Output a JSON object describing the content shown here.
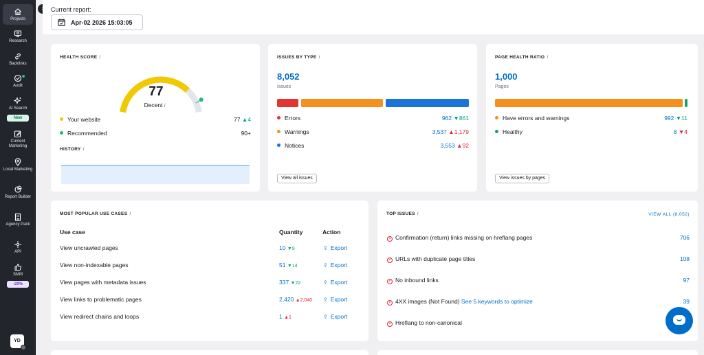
{
  "sidebar": {
    "items": [
      {
        "label": "Projects",
        "icon": "home-icon"
      },
      {
        "label": "Research",
        "icon": "monitor-icon"
      },
      {
        "label": "Backlinks",
        "icon": "link-icon"
      },
      {
        "label": "Audit",
        "icon": "check-circle-icon"
      },
      {
        "label": "AI Search",
        "icon": "sparkle-icon"
      },
      {
        "label": "Content Marketing",
        "icon": "edit-icon"
      },
      {
        "label": "Local Marketing",
        "icon": "map-pin-icon"
      },
      {
        "label": "Report Builder",
        "icon": "pie-icon"
      },
      {
        "label": "Agency Pack",
        "icon": "building-icon"
      },
      {
        "label": "API",
        "icon": "api-icon"
      },
      {
        "label": "SMM",
        "icon": "thumbs-up-icon"
      }
    ],
    "new_badge": "New",
    "discount_badge": "-20%",
    "avatar": "YD"
  },
  "header": {
    "current_report_label": "Current report:",
    "date": "Apr-02 2026 15:03:05"
  },
  "health": {
    "title": "Health score",
    "score": "77",
    "score_value": 77,
    "score_word": "Decent",
    "your_website_label": "Your website",
    "your_website_value": "77",
    "your_website_delta": "4",
    "recommended_label": "Recommended",
    "recommended_value": "90+",
    "history_title": "History",
    "colors": {
      "gauge": "#f2c900",
      "track": "#e4e5ea",
      "marker": "#1fb97a"
    }
  },
  "issues_by_type": {
    "title": "Issues by type",
    "total": "8,052",
    "total_label": "Issues",
    "rows": [
      {
        "label": "Errors",
        "value": "962",
        "delta": "861",
        "trend": "down",
        "color": "#e3342f"
      },
      {
        "label": "Warnings",
        "value": "3,537",
        "delta": "1,179",
        "trend": "up",
        "color": "#f5901f"
      },
      {
        "label": "Notices",
        "value": "3,553",
        "delta": "92",
        "trend": "up",
        "color": "#1b74d8"
      }
    ],
    "view_all_button": "View all issues"
  },
  "page_health": {
    "title": "Page health ratio",
    "total": "1,000",
    "total_label": "Pages",
    "rows": [
      {
        "label": "Have errors and warnings",
        "value": "992",
        "delta": "11",
        "trend": "down",
        "color": "#f5901f"
      },
      {
        "label": "Healthy",
        "value": "8",
        "delta": "4",
        "trend": "down",
        "color": "#16a06c"
      }
    ],
    "view_button": "View issues by pages"
  },
  "use_cases": {
    "title": "Most popular use cases",
    "headers": {
      "use_case": "Use case",
      "quantity": "Quantity",
      "action": "Action"
    },
    "rows": [
      {
        "name": "View uncrawled pages",
        "qty": "10",
        "delta": "9",
        "trend": "down",
        "action": "Export"
      },
      {
        "name": "View non-indexable pages",
        "qty": "51",
        "delta": "14",
        "trend": "down",
        "action": "Export"
      },
      {
        "name": "View pages with metadata issues",
        "qty": "337",
        "delta": "22",
        "trend": "down",
        "action": "Export"
      },
      {
        "name": "View links to problematic pages",
        "qty": "2,420",
        "delta": "2,040",
        "trend": "up",
        "action": "Export"
      },
      {
        "name": "View redirect chains and loops",
        "qty": "1",
        "delta": "1",
        "trend": "up",
        "action": "Export"
      }
    ]
  },
  "top_issues": {
    "title": "Top issues",
    "view_all": "View all (8,052)",
    "rows": [
      {
        "label": "Confirmation (return) links missing on hreflang pages",
        "link": "",
        "count": "706"
      },
      {
        "label": "URLs with duplicate page titles",
        "link": "",
        "count": "108"
      },
      {
        "label": "No inbound links",
        "link": "",
        "count": "97"
      },
      {
        "label": "4XX images (Not Found)",
        "link": "See 5 keywords to optimize",
        "count": "39"
      },
      {
        "label": "Hreflang to non-canonical",
        "link": "",
        "count": ""
      }
    ]
  },
  "colors": {
    "accent": "#006dca",
    "sidebar_bg": "#23252d",
    "error": "#e3253b",
    "positive": "#009f81"
  }
}
